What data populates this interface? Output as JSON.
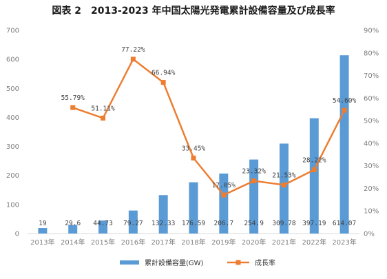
{
  "chart_data": {
    "type": "bar",
    "title": "図表 2　2013-2023 年中国太陽光発電累計設備容量及び成長率",
    "categories": [
      "2013年",
      "2014年",
      "2015年",
      "2016年",
      "2017年",
      "2018年",
      "2019年",
      "2020年",
      "2021年",
      "2022年",
      "2023年"
    ],
    "series": [
      {
        "name": "累計設備容量(GW)",
        "type": "bar",
        "axis": "left",
        "color": "#5b9bd5",
        "values": [
          19,
          29.6,
          44.73,
          79.27,
          132.33,
          176.59,
          206.7,
          254.9,
          309.78,
          397.19,
          614.07
        ],
        "labels": [
          "19",
          "29.6",
          "44.73",
          "79.27",
          "132.33",
          "176.59",
          "206.7",
          "254.9",
          "309.78",
          "397.19",
          "614.07"
        ]
      },
      {
        "name": "成長率",
        "type": "line",
        "axis": "right",
        "color": "#ed7d31",
        "values": [
          null,
          55.79,
          51.11,
          77.22,
          66.94,
          33.45,
          17.05,
          23.32,
          21.53,
          28.22,
          54.6
        ],
        "labels": [
          null,
          "55.79%",
          "51.11%",
          "77.22%",
          "66.94%",
          "33.45%",
          "17.05%",
          "23.32%",
          "21.53%",
          "28.22%",
          "54.60%"
        ]
      }
    ],
    "y_left": {
      "min": 0,
      "max": 700,
      "ticks": [
        "0",
        "100",
        "200",
        "300",
        "400",
        "500",
        "600",
        "700"
      ]
    },
    "y_right": {
      "min": 0,
      "max": 90,
      "ticks": [
        "0%",
        "10%",
        "20%",
        "30%",
        "40%",
        "50%",
        "60%",
        "70%",
        "80%",
        "90%"
      ]
    },
    "grid": false,
    "legend_position": "bottom"
  }
}
